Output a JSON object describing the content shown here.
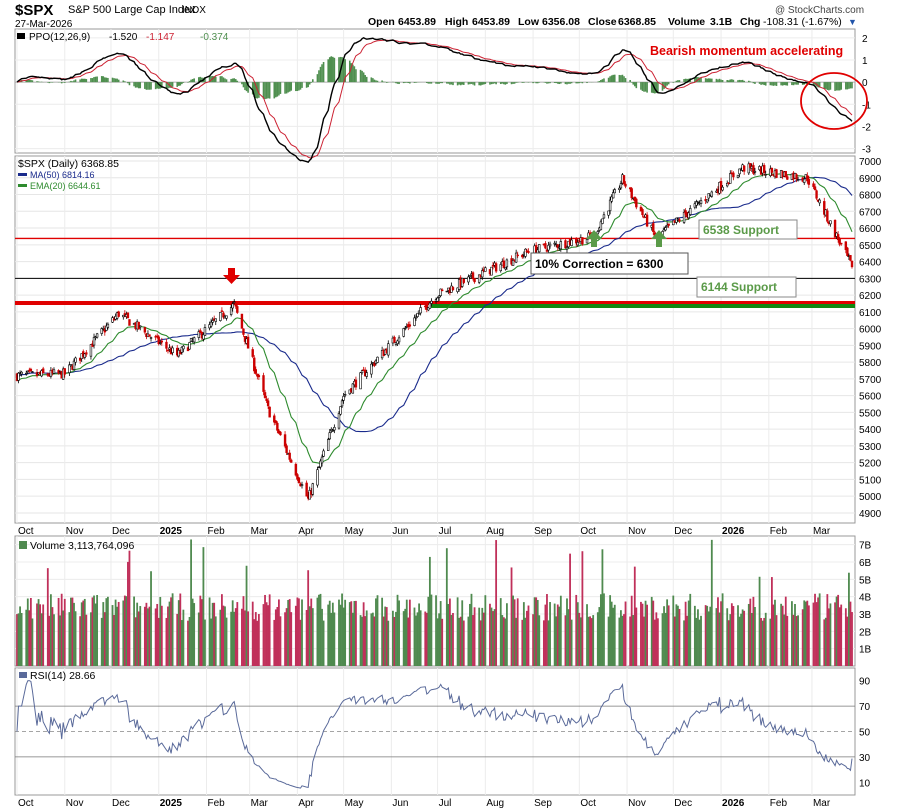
{
  "header": {
    "symbol": "$SPX",
    "name": "S&P 500 Large Cap Index",
    "exchange": "INDX",
    "date": "27-Mar-2026",
    "open_label": "Open",
    "open": "6453.89",
    "high_label": "High",
    "high": "6453.89",
    "low_label": "Low",
    "low": "6356.08",
    "close_label": "Close",
    "close": "6368.85",
    "volume_label": "Volume",
    "volume": "3.1B",
    "chg_label": "Chg",
    "chg": "-108.31 (-1.67%)",
    "watermark": "@ StockCharts.com"
  },
  "ppo_panel": {
    "legend_name": "PPO(12,26,9)",
    "ppo": "-1.520",
    "signal": "-1.147",
    "hist": "-0.374",
    "annotation": "Bearish momentum accelerating",
    "yticks": [
      "2",
      "1",
      "0",
      "-1",
      "-2",
      "-3"
    ]
  },
  "price_panel": {
    "legend_price": "$SPX (Daily) 6368.85",
    "legend_ma": "MA(50) 6814.16",
    "legend_ema": "EMA(20) 6644.61",
    "yticks": [
      "7000",
      "6900",
      "6800",
      "6700",
      "6600",
      "6500",
      "6400",
      "6300",
      "6200",
      "6100",
      "6000",
      "5900",
      "5800",
      "5700",
      "5600",
      "5500",
      "5400",
      "5300",
      "5200",
      "5100",
      "5000",
      "4900"
    ],
    "label_6538": "6538 Support",
    "label_6300": "10% Correction = 6300",
    "label_6144": "6144 Support"
  },
  "xaxis_labels": [
    "Oct",
    "Nov",
    "Dec",
    "2025",
    "Feb",
    "Mar",
    "Apr",
    "May",
    "Jun",
    "Jul",
    "Aug",
    "Sep",
    "Oct",
    "Nov",
    "Dec",
    "2026",
    "Feb",
    "Mar"
  ],
  "volume_panel": {
    "legend": "Volume 3,113,764,096",
    "yticks": [
      "7B",
      "6B",
      "5B",
      "4B",
      "3B",
      "2B",
      "1B"
    ]
  },
  "rsi_panel": {
    "legend": "RSI(14) 28.66",
    "yticks": [
      "90",
      "70",
      "50",
      "30",
      "10"
    ]
  },
  "colors": {
    "up": "#000000",
    "down": "#cc0000",
    "ma50": "#1a2b8c",
    "ema20": "#2e8b2e",
    "ppo_line": "#000000",
    "ppo_signal": "#cc2233",
    "hist": "#4f8f4f",
    "support_red": "#e00000",
    "support_green": "#118811",
    "vol_up": "#4f8a4f",
    "vol_down": "#c0305a",
    "rsi": "#5a6a9a"
  },
  "chart_data": [
    {
      "type": "candlestick",
      "title": "$SPX (Daily)",
      "x_range": [
        "2024-10-01",
        "2026-03-27"
      ],
      "ylim": [
        4840,
        7030
      ],
      "key_points": [
        {
          "date": "2024-10-01",
          "close": 5720
        },
        {
          "date": "2024-11-01",
          "close": 5730
        },
        {
          "date": "2024-12-06",
          "close": 6090
        },
        {
          "date": "2025-01-13",
          "close": 5840
        },
        {
          "date": "2025-02-19",
          "close": 6144
        },
        {
          "date": "2025-03-13",
          "close": 5520
        },
        {
          "date": "2025-04-08",
          "close": 4980
        },
        {
          "date": "2025-05-01",
          "close": 5600
        },
        {
          "date": "2025-06-30",
          "close": 6200
        },
        {
          "date": "2025-08-29",
          "close": 6460
        },
        {
          "date": "2025-10-10",
          "close": 6550
        },
        {
          "date": "2025-10-29",
          "close": 6890
        },
        {
          "date": "2025-11-20",
          "close": 6540
        },
        {
          "date": "2026-01-15",
          "close": 6960
        },
        {
          "date": "2026-02-26",
          "close": 6900
        },
        {
          "date": "2026-03-27",
          "close": 6368.85
        }
      ],
      "horizontal_lines": [
        6538,
        6300,
        6144
      ],
      "annotations": [
        "6538 Support",
        "10% Correction = 6300",
        "6144 Support"
      ]
    },
    {
      "type": "line",
      "title": "PPO(12,26,9)",
      "ylim": [
        -3.2,
        2.4
      ],
      "last_values": {
        "ppo": -1.52,
        "signal": -1.147,
        "histogram": -0.374
      }
    },
    {
      "type": "bar",
      "title": "Volume",
      "ylim": [
        0,
        7.5
      ],
      "unit": "B",
      "last_value": 3.113764096
    },
    {
      "type": "line",
      "title": "RSI(14)",
      "ylim": [
        0,
        100
      ],
      "reference_lines": [
        70,
        50,
        30
      ],
      "last_value": 28.66
    }
  ]
}
